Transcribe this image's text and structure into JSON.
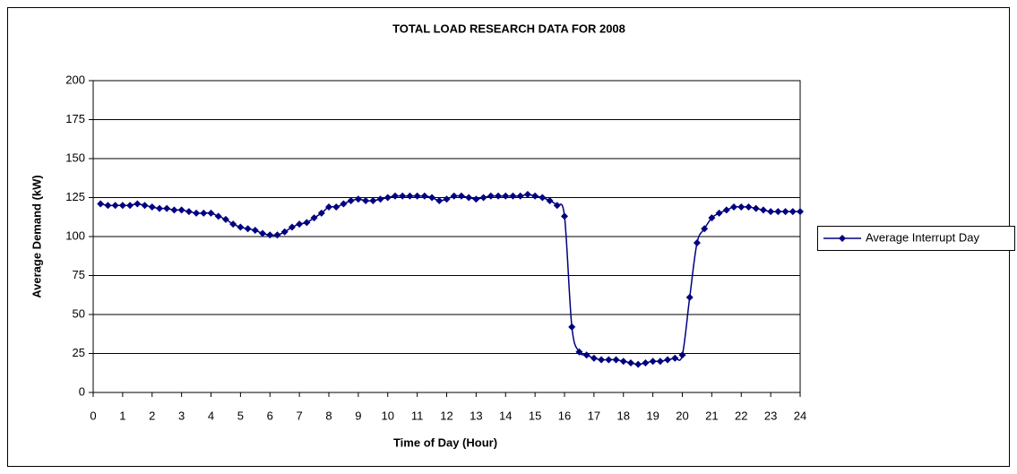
{
  "chart_data": {
    "type": "line",
    "title": "TOTAL LOAD RESEARCH DATA FOR 2008",
    "x_label": "Time of Day (Hour)",
    "y_label": "Average Demand (kW)",
    "x": [
      0.25,
      0.5,
      0.75,
      1,
      1.25,
      1.5,
      1.75,
      2,
      2.25,
      2.5,
      2.75,
      3,
      3.25,
      3.5,
      3.75,
      4,
      4.25,
      4.5,
      4.75,
      5,
      5.25,
      5.5,
      5.75,
      6,
      6.25,
      6.5,
      6.75,
      7,
      7.25,
      7.5,
      7.75,
      8,
      8.25,
      8.5,
      8.75,
      9,
      9.25,
      9.5,
      9.75,
      10,
      10.25,
      10.5,
      10.75,
      11,
      11.25,
      11.5,
      11.75,
      12,
      12.25,
      12.5,
      12.75,
      13,
      13.25,
      13.5,
      13.75,
      14,
      14.25,
      14.5,
      14.75,
      15,
      15.25,
      15.5,
      15.75,
      16,
      16.25,
      16.5,
      16.75,
      17,
      17.25,
      17.5,
      17.75,
      18,
      18.25,
      18.5,
      18.75,
      19,
      19.25,
      19.5,
      19.75,
      20,
      20.25,
      20.5,
      20.75,
      21,
      21.25,
      21.5,
      21.75,
      22,
      22.25,
      22.5,
      22.75,
      23,
      23.25,
      23.5,
      23.75,
      24
    ],
    "series": [
      {
        "name": "Average Interrupt Day",
        "color": "#000080",
        "values": [
          121,
          120,
          120,
          120,
          120,
          121,
          120,
          119,
          118,
          118,
          117,
          117,
          116,
          115,
          115,
          115,
          113,
          111,
          108,
          106,
          105,
          104,
          102,
          101,
          101,
          103,
          106,
          108,
          109,
          112,
          115,
          119,
          119,
          121,
          123,
          124,
          123,
          123,
          124,
          125,
          126,
          126,
          126,
          126,
          126,
          125,
          123,
          124,
          126,
          126,
          125,
          124,
          125,
          126,
          126,
          126,
          126,
          126,
          127,
          126,
          125,
          123,
          120,
          113,
          42,
          26,
          24,
          22,
          21,
          21,
          21,
          20,
          19,
          18,
          19,
          20,
          20,
          21,
          22,
          24,
          61,
          96,
          105,
          112,
          115,
          117,
          119,
          119,
          119,
          118,
          117,
          116,
          116,
          116,
          116,
          116
        ]
      }
    ],
    "xlim": [
      0,
      24
    ],
    "xticks": [
      0,
      1,
      2,
      3,
      4,
      5,
      6,
      7,
      8,
      9,
      10,
      11,
      12,
      13,
      14,
      15,
      16,
      17,
      18,
      19,
      20,
      21,
      22,
      23,
      24
    ],
    "ylim": [
      0,
      200
    ],
    "yticks": [
      0,
      25,
      50,
      75,
      100,
      125,
      150,
      175,
      200
    ],
    "grid": true,
    "legend": "right"
  }
}
